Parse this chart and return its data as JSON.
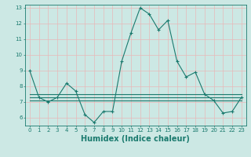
{
  "x": [
    0,
    1,
    2,
    3,
    4,
    5,
    6,
    7,
    8,
    9,
    10,
    11,
    12,
    13,
    14,
    15,
    16,
    17,
    18,
    19,
    20,
    21,
    22,
    23
  ],
  "y_main": [
    9,
    7.3,
    7.0,
    7.3,
    8.2,
    7.7,
    6.2,
    5.7,
    6.4,
    6.4,
    9.6,
    11.4,
    13.0,
    12.6,
    11.6,
    12.2,
    9.6,
    8.6,
    8.9,
    7.5,
    7.1,
    6.3,
    6.4,
    7.3
  ],
  "y_flat1": [
    7.1,
    7.1,
    7.1,
    7.1,
    7.1,
    7.1,
    7.1,
    7.1,
    7.1,
    7.1,
    7.1,
    7.1,
    7.1,
    7.1,
    7.1,
    7.1,
    7.1,
    7.1,
    7.1,
    7.1,
    7.1,
    7.1,
    7.1,
    7.1
  ],
  "y_flat2": [
    7.3,
    7.3,
    7.3,
    7.3,
    7.3,
    7.3,
    7.3,
    7.3,
    7.3,
    7.3,
    7.3,
    7.3,
    7.3,
    7.3,
    7.3,
    7.3,
    7.3,
    7.3,
    7.3,
    7.3,
    7.3,
    7.3,
    7.3,
    7.3
  ],
  "y_flat3": [
    7.5,
    7.5,
    7.5,
    7.5,
    7.5,
    7.5,
    7.5,
    7.5,
    7.5,
    7.5,
    7.5,
    7.5,
    7.5,
    7.5,
    7.5,
    7.5,
    7.5,
    7.5,
    7.5,
    7.5,
    7.5,
    7.5,
    7.5,
    7.5
  ],
  "line_color": "#1a7a6e",
  "bg_color": "#cce8e4",
  "grid_color": "#e8b8b8",
  "ylim": [
    5.5,
    13.2
  ],
  "yticks": [
    6,
    7,
    8,
    9,
    10,
    11,
    12,
    13
  ],
  "xticks": [
    0,
    1,
    2,
    3,
    4,
    5,
    6,
    7,
    8,
    9,
    10,
    11,
    12,
    13,
    14,
    15,
    16,
    17,
    18,
    19,
    20,
    21,
    22,
    23
  ],
  "xlabel": "Humidex (Indice chaleur)",
  "xlabel_fontsize": 7,
  "tick_fontsize": 5,
  "line_width": 0.8,
  "marker_size": 2.5
}
